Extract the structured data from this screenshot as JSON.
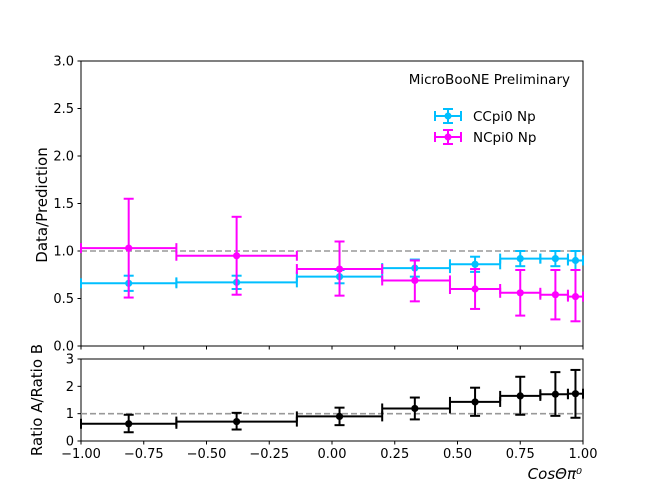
{
  "chart_data": [
    {
      "panel": "top",
      "type": "scatter",
      "title": "",
      "annotation": "MicroBooNE Preliminary",
      "xlabel": "",
      "ylabel": "Data/Prediction",
      "xlim": [
        -1.0,
        1.0
      ],
      "ylim": [
        0.0,
        3.0
      ],
      "yticks": [
        "0.0",
        "0.5",
        "1.0",
        "1.5",
        "2.0",
        "2.5",
        "3.0"
      ],
      "reference_line": 1.0,
      "legend_position": "upper-right",
      "series": [
        {
          "name": "CCpi0 Np",
          "color": "#00bfff",
          "points": [
            {
              "x": -0.81,
              "xlo": -1.0,
              "xhi": -0.62,
              "y": 0.66,
              "ylo": 0.58,
              "yhi": 0.74
            },
            {
              "x": -0.38,
              "xlo": -0.62,
              "xhi": -0.14,
              "y": 0.67,
              "ylo": 0.6,
              "yhi": 0.74
            },
            {
              "x": 0.03,
              "xlo": -0.14,
              "xhi": 0.2,
              "y": 0.73,
              "ylo": 0.66,
              "yhi": 0.8
            },
            {
              "x": 0.33,
              "xlo": 0.2,
              "xhi": 0.47,
              "y": 0.82,
              "ylo": 0.73,
              "yhi": 0.91
            },
            {
              "x": 0.57,
              "xlo": 0.47,
              "xhi": 0.67,
              "y": 0.86,
              "ylo": 0.78,
              "yhi": 0.94
            },
            {
              "x": 0.75,
              "xlo": 0.67,
              "xhi": 0.83,
              "y": 0.92,
              "ylo": 0.84,
              "yhi": 1.0
            },
            {
              "x": 0.89,
              "xlo": 0.83,
              "xhi": 0.94,
              "y": 0.92,
              "ylo": 0.84,
              "yhi": 1.0
            },
            {
              "x": 0.97,
              "xlo": 0.94,
              "xhi": 1.0,
              "y": 0.9,
              "ylo": 0.8,
              "yhi": 1.0
            }
          ]
        },
        {
          "name": "NCpi0 Np",
          "color": "#ff00ff",
          "points": [
            {
              "x": -0.81,
              "xlo": -1.0,
              "xhi": -0.62,
              "y": 1.03,
              "ylo": 0.51,
              "yhi": 1.55
            },
            {
              "x": -0.38,
              "xlo": -0.62,
              "xhi": -0.14,
              "y": 0.95,
              "ylo": 0.54,
              "yhi": 1.36
            },
            {
              "x": 0.03,
              "xlo": -0.14,
              "xhi": 0.2,
              "y": 0.81,
              "ylo": 0.53,
              "yhi": 1.1
            },
            {
              "x": 0.33,
              "xlo": 0.2,
              "xhi": 0.47,
              "y": 0.69,
              "ylo": 0.47,
              "yhi": 0.9
            },
            {
              "x": 0.57,
              "xlo": 0.47,
              "xhi": 0.67,
              "y": 0.6,
              "ylo": 0.39,
              "yhi": 0.81
            },
            {
              "x": 0.75,
              "xlo": 0.67,
              "xhi": 0.83,
              "y": 0.56,
              "ylo": 0.32,
              "yhi": 0.8
            },
            {
              "x": 0.89,
              "xlo": 0.83,
              "xhi": 0.94,
              "y": 0.54,
              "ylo": 0.28,
              "yhi": 0.8
            },
            {
              "x": 0.97,
              "xlo": 0.94,
              "xhi": 1.0,
              "y": 0.52,
              "ylo": 0.26,
              "yhi": 0.8
            }
          ]
        }
      ]
    },
    {
      "panel": "bottom",
      "type": "scatter",
      "xlabel": "CosΘπ⁰",
      "ylabel": "Ratio A/Ratio B",
      "xlim": [
        -1.0,
        1.0
      ],
      "ylim": [
        0,
        3
      ],
      "xticks": [
        "−1.00",
        "−0.75",
        "−0.50",
        "−0.25",
        "0.00",
        "0.25",
        "0.50",
        "0.75",
        "1.00"
      ],
      "yticks": [
        "0",
        "1",
        "2",
        "3"
      ],
      "reference_line": 1.0,
      "series": [
        {
          "name": "",
          "color": "#000000",
          "points": [
            {
              "x": -0.81,
              "xlo": -1.0,
              "xhi": -0.62,
              "y": 0.63,
              "ylo": 0.32,
              "yhi": 0.96
            },
            {
              "x": -0.38,
              "xlo": -0.62,
              "xhi": -0.14,
              "y": 0.71,
              "ylo": 0.42,
              "yhi": 1.03
            },
            {
              "x": 0.03,
              "xlo": -0.14,
              "xhi": 0.2,
              "y": 0.9,
              "ylo": 0.58,
              "yhi": 1.22
            },
            {
              "x": 0.33,
              "xlo": 0.2,
              "xhi": 0.47,
              "y": 1.19,
              "ylo": 0.79,
              "yhi": 1.59
            },
            {
              "x": 0.57,
              "xlo": 0.47,
              "xhi": 0.67,
              "y": 1.43,
              "ylo": 0.92,
              "yhi": 1.95
            },
            {
              "x": 0.75,
              "xlo": 0.67,
              "xhi": 0.83,
              "y": 1.65,
              "ylo": 0.96,
              "yhi": 2.35
            },
            {
              "x": 0.89,
              "xlo": 0.83,
              "xhi": 0.94,
              "y": 1.71,
              "ylo": 0.92,
              "yhi": 2.52
            },
            {
              "x": 0.97,
              "xlo": 0.94,
              "xhi": 1.0,
              "y": 1.73,
              "ylo": 0.85,
              "yhi": 2.6
            }
          ]
        }
      ]
    }
  ]
}
